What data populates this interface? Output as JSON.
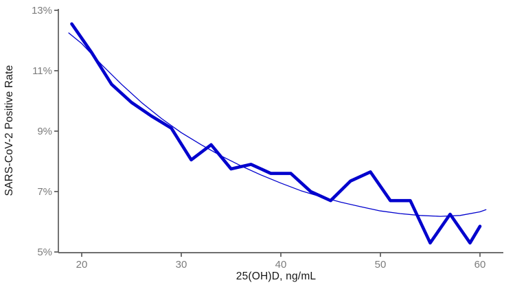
{
  "figure": {
    "background": "#ffffff",
    "axis_color": "#5a5a5a",
    "tick_label_color": "#7b7b7b",
    "title_color": "#161616"
  },
  "chart_data": {
    "type": "line",
    "title": "",
    "xlabel": "25(OH)D, ng/mL",
    "ylabel": "SARS-CoV-2 Positive Rate",
    "xlim": [
      17.7,
      62.4
    ],
    "ylim": [
      5,
      13
    ],
    "grid": false,
    "legend": "none",
    "x_ticks": [
      {
        "value": 20,
        "label": "20"
      },
      {
        "value": 30,
        "label": "30"
      },
      {
        "value": 40,
        "label": "40"
      },
      {
        "value": 50,
        "label": "50"
      },
      {
        "value": 60,
        "label": "60"
      }
    ],
    "y_ticks": [
      {
        "value": 13,
        "label": "13%"
      },
      {
        "value": 11,
        "label": "11%"
      },
      {
        "value": 9,
        "label": "9%"
      },
      {
        "value": 7,
        "label": "7%"
      },
      {
        "value": 5,
        "label": "5%"
      }
    ],
    "series": [
      {
        "name": "observed-positive-rate",
        "color": "#0000CD",
        "stroke_width": 4.6,
        "points": [
          [
            19,
            12.55
          ],
          [
            21,
            11.6
          ],
          [
            23,
            10.55
          ],
          [
            25,
            9.95
          ],
          [
            27,
            9.5
          ],
          [
            29,
            9.1
          ],
          [
            31,
            8.05
          ],
          [
            33,
            8.55
          ],
          [
            35,
            7.75
          ],
          [
            37,
            7.9
          ],
          [
            39,
            7.6
          ],
          [
            41,
            7.6
          ],
          [
            43,
            7.0
          ],
          [
            45,
            6.7
          ],
          [
            47,
            7.35
          ],
          [
            49,
            7.65
          ],
          [
            51,
            6.7
          ],
          [
            53,
            6.7
          ],
          [
            55,
            5.3
          ],
          [
            57,
            6.25
          ],
          [
            59,
            5.3
          ],
          [
            60,
            5.85
          ]
        ]
      },
      {
        "name": "fitted-trend",
        "color": "#0000CD",
        "stroke_width": 1.3,
        "points": [
          [
            18.7,
            12.25
          ],
          [
            20,
            11.9
          ],
          [
            22,
            11.2
          ],
          [
            24,
            10.55
          ],
          [
            26,
            9.95
          ],
          [
            28,
            9.42
          ],
          [
            30,
            8.95
          ],
          [
            32,
            8.55
          ],
          [
            34,
            8.18
          ],
          [
            36,
            7.85
          ],
          [
            38,
            7.55
          ],
          [
            40,
            7.28
          ],
          [
            42,
            7.03
          ],
          [
            44,
            6.83
          ],
          [
            46,
            6.65
          ],
          [
            48,
            6.5
          ],
          [
            50,
            6.36
          ],
          [
            52,
            6.27
          ],
          [
            54,
            6.21
          ],
          [
            56,
            6.18
          ],
          [
            58,
            6.21
          ],
          [
            60,
            6.33
          ],
          [
            60.6,
            6.4
          ]
        ]
      }
    ]
  }
}
